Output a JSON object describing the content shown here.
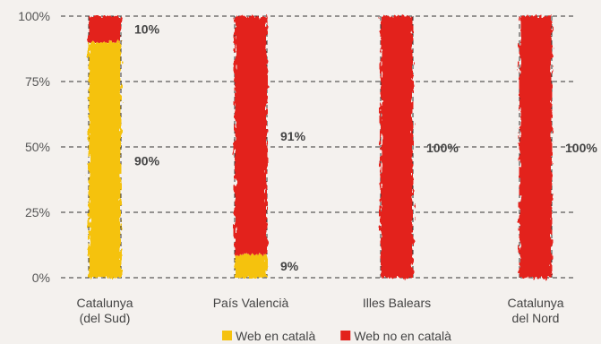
{
  "chart_data": {
    "type": "bar",
    "stacked": true,
    "percent": true,
    "categories": [
      [
        "Catalunya",
        "(del Sud)"
      ],
      [
        "País Valencià"
      ],
      [
        "Illes Balears"
      ],
      [
        "Catalunya",
        "del Nord"
      ]
    ],
    "series": [
      {
        "name": "Web en català",
        "values": [
          90,
          9,
          0,
          0
        ],
        "color": "#f5c20e"
      },
      {
        "name": "Web no en català",
        "values": [
          10,
          91,
          100,
          100
        ],
        "color": "#e3211c"
      }
    ],
    "data_labels": [
      [
        "90%",
        "9%",
        null,
        null
      ],
      [
        "10%",
        "91%",
        "100%",
        "100%"
      ]
    ],
    "yticks": [
      "0%",
      "25%",
      "50%",
      "75%",
      "100%"
    ],
    "ylim": [
      0,
      100
    ],
    "grid": true,
    "legend_position": "bottom"
  }
}
